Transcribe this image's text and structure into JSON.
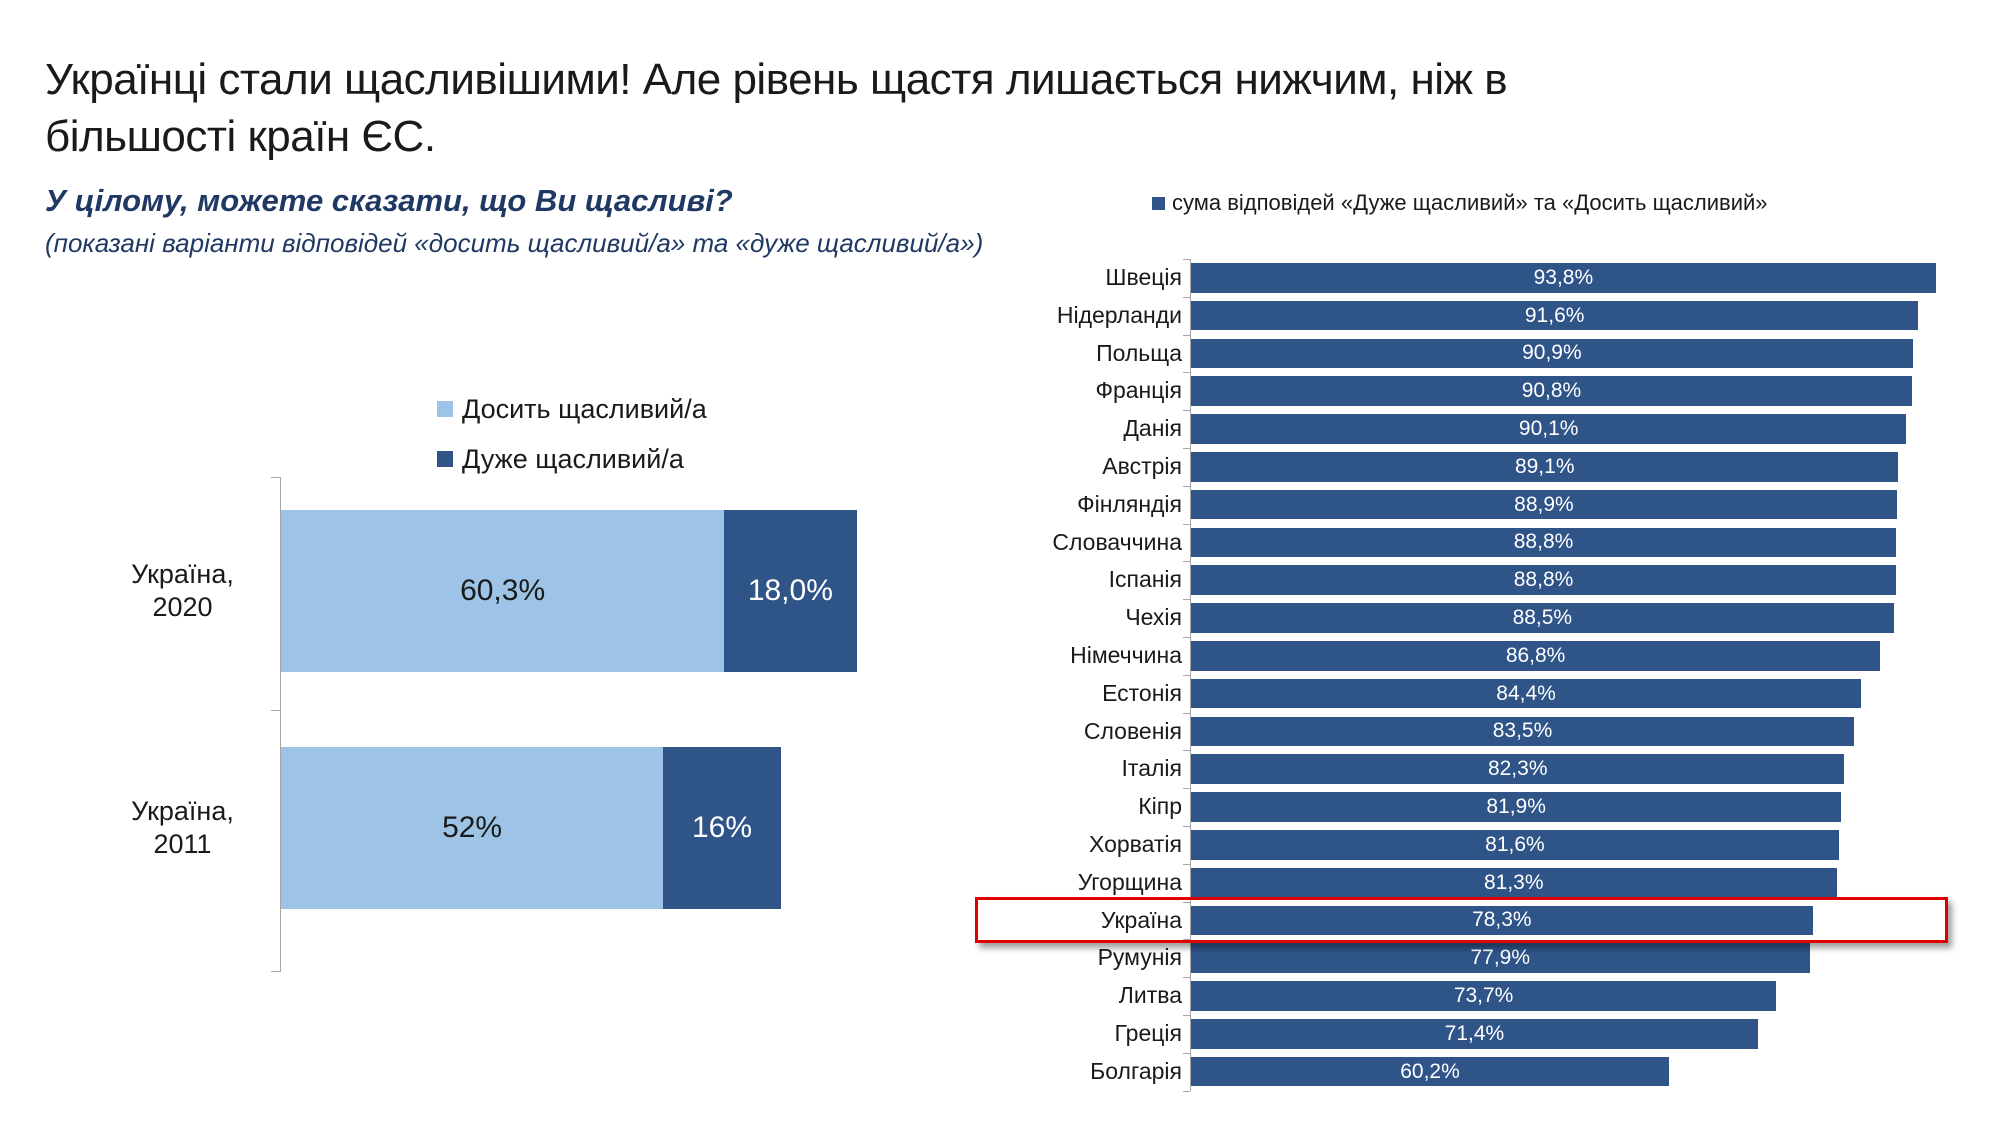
{
  "slide_title": {
    "line1": "Українці стали щасливішими! Але рівень щастя лишається нижчим, ніж в",
    "line2": "більшості країн ЄС."
  },
  "colors": {
    "fairly_happy_light_blue": "#9DC3E6",
    "very_happy_dark_blue": "#2F5488",
    "subtitle_navy": "#1F3864",
    "highlight_red": "#E00000",
    "axis_gray": "#A6A6A6"
  },
  "chart_data": [
    {
      "type": "bar",
      "orientation": "horizontal_stacked",
      "title": "У цілому, можете сказати, що Ви щасливі?",
      "subtitle": "(показані варіанти відповідей «досить щасливий/а» та «дуже щасливий/а»)",
      "categories": [
        "Україна, 2020",
        "Україна, 2011"
      ],
      "categories_lines": [
        [
          "Україна,",
          "2020"
        ],
        [
          "Україна,",
          "2011"
        ]
      ],
      "series": [
        {
          "name": "Досить щасливий/а",
          "color": "#9DC3E6",
          "values": [
            60.3,
            52
          ]
        },
        {
          "name": "Дуже щасливий/а",
          "color": "#2F5488",
          "values": [
            18.0,
            16
          ]
        }
      ],
      "value_labels": [
        [
          "60,3%",
          "18,0%"
        ],
        [
          "52%",
          "16%"
        ]
      ],
      "xlim": [
        0,
        100
      ],
      "grid": false,
      "legend_position": "top"
    },
    {
      "type": "bar",
      "orientation": "horizontal",
      "legend_label": "сума відповідей «Дуже щасливий» та «Досить щасливий»",
      "bar_color": "#2F5488",
      "categories": [
        "Швеція",
        "Нідерланди",
        "Польща",
        "Франція",
        "Данія",
        "Австрія",
        "Фінляндія",
        "Словаччина",
        "Іспанія",
        "Чехія",
        "Німеччина",
        "Естонія",
        "Словенія",
        "Італія",
        "Кіпр",
        "Хорватія",
        "Угорщина",
        "Україна",
        "Румунія",
        "Литва",
        "Греція",
        "Болгарія"
      ],
      "values": [
        93.8,
        91.6,
        90.9,
        90.8,
        90.1,
        89.1,
        88.9,
        88.8,
        88.8,
        88.5,
        86.8,
        84.4,
        83.5,
        82.3,
        81.9,
        81.6,
        81.3,
        78.3,
        77.9,
        73.7,
        71.4,
        60.2
      ],
      "value_labels": [
        "93,8%",
        "91,6%",
        "90,9%",
        "90,8%",
        "90,1%",
        "89,1%",
        "88,9%",
        "88,8%",
        "88,8%",
        "88,5%",
        "86,8%",
        "84,4%",
        "83,5%",
        "82,3%",
        "81,9%",
        "81,6%",
        "81,3%",
        "78,3%",
        "77,9%",
        "73,7%",
        "71,4%",
        "60,2%"
      ],
      "xlim": [
        0,
        100
      ],
      "grid": false,
      "highlight": {
        "category": "Україна",
        "index": 17,
        "style": "red-outline"
      }
    }
  ]
}
